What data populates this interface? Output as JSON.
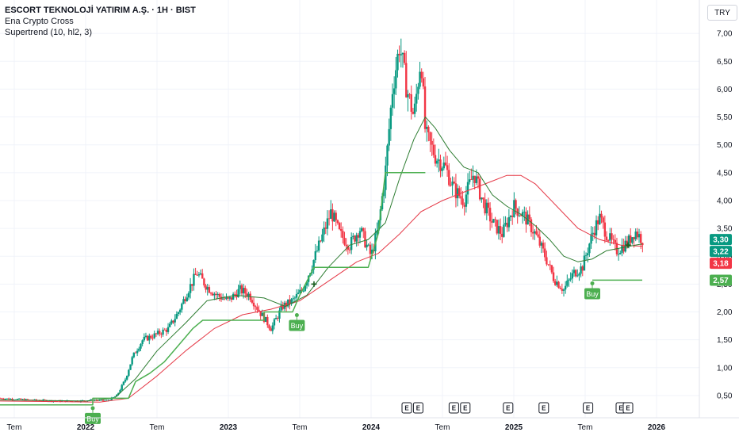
{
  "header": {
    "title": "ESCORT TEKNOLOJİ YATIRIM A.Ş. · 1H · BIST",
    "indicator_1": "Ena Crypto Cross",
    "indicator_2": "Supertrend (10, hl2, 3)",
    "currency": "TRY"
  },
  "chart_data": {
    "type": "candlestick",
    "y_ticks": [
      "0,50",
      "1,00",
      "1,50",
      "2,00",
      "2,50",
      "3,00",
      "3,50",
      "4,00",
      "4,50",
      "5,00",
      "5,50",
      "6,00",
      "6,50",
      "7,00"
    ],
    "y_tick_values": [
      0.5,
      1.0,
      1.5,
      2.0,
      2.5,
      3.0,
      3.5,
      4.0,
      4.5,
      5.0,
      5.5,
      6.0,
      6.5,
      7.0
    ],
    "ylim": [
      0.1,
      7.6
    ],
    "x_labels": [
      {
        "label": "Tem",
        "t": 2021.5,
        "bold": false
      },
      {
        "label": "2022",
        "t": 2022.0,
        "bold": true
      },
      {
        "label": "Tem",
        "t": 2022.5,
        "bold": false
      },
      {
        "label": "2023",
        "t": 2023.0,
        "bold": true
      },
      {
        "label": "Tem",
        "t": 2023.5,
        "bold": false
      },
      {
        "label": "2024",
        "t": 2024.0,
        "bold": true
      },
      {
        "label": "Tem",
        "t": 2024.5,
        "bold": false
      },
      {
        "label": "2025",
        "t": 2025.0,
        "bold": true
      },
      {
        "label": "Tem",
        "t": 2025.5,
        "bold": false
      },
      {
        "label": "2026",
        "t": 2026.0,
        "bold": true
      }
    ],
    "xlim": [
      2021.4,
      2026.3
    ],
    "price_path": [
      [
        2021.4,
        0.45
      ],
      [
        2021.6,
        0.42
      ],
      [
        2021.8,
        0.4
      ],
      [
        2021.95,
        0.4
      ],
      [
        2022.05,
        0.42
      ],
      [
        2022.15,
        0.4
      ],
      [
        2022.22,
        0.5
      ],
      [
        2022.28,
        0.8
      ],
      [
        2022.33,
        1.2
      ],
      [
        2022.4,
        1.5
      ],
      [
        2022.5,
        1.6
      ],
      [
        2022.58,
        1.7
      ],
      [
        2022.65,
        2.0
      ],
      [
        2022.72,
        2.4
      ],
      [
        2022.78,
        2.7
      ],
      [
        2022.85,
        2.45
      ],
      [
        2022.92,
        2.3
      ],
      [
        2023.0,
        2.2
      ],
      [
        2023.08,
        2.4
      ],
      [
        2023.15,
        2.3
      ],
      [
        2023.22,
        2.0
      ],
      [
        2023.3,
        1.7
      ],
      [
        2023.38,
        2.1
      ],
      [
        2023.45,
        2.2
      ],
      [
        2023.52,
        2.4
      ],
      [
        2023.58,
        2.8
      ],
      [
        2023.65,
        3.3
      ],
      [
        2023.72,
        3.8
      ],
      [
        2023.78,
        3.4
      ],
      [
        2023.85,
        3.2
      ],
      [
        2023.92,
        3.5
      ],
      [
        2024.0,
        3.0
      ],
      [
        2024.05,
        3.5
      ],
      [
        2024.1,
        4.5
      ],
      [
        2024.15,
        6.0
      ],
      [
        2024.2,
        6.8
      ],
      [
        2024.25,
        6.0
      ],
      [
        2024.3,
        5.5
      ],
      [
        2024.35,
        6.6
      ],
      [
        2024.38,
        5.2
      ],
      [
        2024.45,
        4.8
      ],
      [
        2024.52,
        4.6
      ],
      [
        2024.58,
        4.2
      ],
      [
        2024.65,
        4.0
      ],
      [
        2024.72,
        4.5
      ],
      [
        2024.78,
        4.0
      ],
      [
        2024.85,
        3.6
      ],
      [
        2024.92,
        3.4
      ],
      [
        2025.0,
        3.9
      ],
      [
        2025.08,
        3.7
      ],
      [
        2025.15,
        3.4
      ],
      [
        2025.22,
        3.0
      ],
      [
        2025.28,
        2.6
      ],
      [
        2025.35,
        2.4
      ],
      [
        2025.42,
        2.7
      ],
      [
        2025.48,
        2.8
      ],
      [
        2025.55,
        3.4
      ],
      [
        2025.6,
        3.7
      ],
      [
        2025.65,
        3.4
      ],
      [
        2025.72,
        3.1
      ],
      [
        2025.8,
        3.25
      ],
      [
        2025.85,
        3.45
      ],
      [
        2025.9,
        3.3
      ]
    ],
    "supertrend": [
      [
        2021.4,
        0.33
      ],
      [
        2022.05,
        0.33
      ],
      [
        2022.05,
        0.45
      ],
      [
        2022.3,
        0.45
      ],
      [
        2022.35,
        0.75
      ],
      [
        2022.45,
        0.9
      ],
      [
        2022.55,
        1.1
      ],
      [
        2022.65,
        1.4
      ],
      [
        2022.75,
        1.7
      ],
      [
        2022.82,
        1.85
      ],
      [
        2023.25,
        1.85
      ],
      [
        2023.25,
        2.0
      ],
      [
        2023.45,
        2.0
      ],
      [
        2023.5,
        2.3
      ],
      [
        2023.6,
        2.8
      ],
      [
        2023.98,
        2.8
      ],
      [
        2024.05,
        3.4
      ],
      [
        2024.1,
        4.5
      ],
      [
        2024.38,
        4.5
      ],
      [
        2024.38,
        4.5
      ]
    ],
    "supertrend_2": [
      [
        2025.55,
        2.57
      ],
      [
        2025.9,
        2.57
      ]
    ],
    "ema_fast": [
      [
        2021.4,
        0.42
      ],
      [
        2022.0,
        0.4
      ],
      [
        2022.2,
        0.45
      ],
      [
        2022.35,
        0.8
      ],
      [
        2022.5,
        1.3
      ],
      [
        2022.7,
        1.8
      ],
      [
        2022.85,
        2.2
      ],
      [
        2023.05,
        2.3
      ],
      [
        2023.25,
        2.25
      ],
      [
        2023.4,
        2.1
      ],
      [
        2023.55,
        2.3
      ],
      [
        2023.7,
        2.8
      ],
      [
        2023.85,
        3.2
      ],
      [
        2023.98,
        3.3
      ],
      [
        2024.1,
        3.6
      ],
      [
        2024.2,
        4.4
      ],
      [
        2024.3,
        5.1
      ],
      [
        2024.38,
        5.5
      ],
      [
        2024.45,
        5.3
      ],
      [
        2024.55,
        4.9
      ],
      [
        2024.65,
        4.6
      ],
      [
        2024.75,
        4.5
      ],
      [
        2024.85,
        4.1
      ],
      [
        2024.95,
        3.9
      ],
      [
        2025.05,
        3.75
      ],
      [
        2025.15,
        3.55
      ],
      [
        2025.25,
        3.3
      ],
      [
        2025.35,
        3.0
      ],
      [
        2025.45,
        2.9
      ],
      [
        2025.55,
        2.95
      ],
      [
        2025.65,
        3.1
      ],
      [
        2025.75,
        3.15
      ],
      [
        2025.85,
        3.2
      ],
      [
        2025.9,
        3.22
      ]
    ],
    "ema_slow": [
      [
        2021.4,
        0.4
      ],
      [
        2022.1,
        0.38
      ],
      [
        2022.3,
        0.45
      ],
      [
        2022.5,
        0.85
      ],
      [
        2022.7,
        1.3
      ],
      [
        2022.9,
        1.7
      ],
      [
        2023.1,
        1.95
      ],
      [
        2023.3,
        2.05
      ],
      [
        2023.5,
        2.2
      ],
      [
        2023.7,
        2.55
      ],
      [
        2023.9,
        2.9
      ],
      [
        2024.05,
        3.05
      ],
      [
        2024.2,
        3.4
      ],
      [
        2024.35,
        3.8
      ],
      [
        2024.5,
        4.0
      ],
      [
        2024.65,
        4.15
      ],
      [
        2024.85,
        4.35
      ],
      [
        2024.95,
        4.45
      ],
      [
        2025.05,
        4.45
      ],
      [
        2025.15,
        4.3
      ],
      [
        2025.3,
        3.9
      ],
      [
        2025.45,
        3.5
      ],
      [
        2025.6,
        3.3
      ],
      [
        2025.75,
        3.2
      ],
      [
        2025.9,
        3.18
      ]
    ],
    "price_tags": [
      {
        "label": "3,30",
        "value": 3.3,
        "color": "#089981"
      },
      {
        "label": "3,22",
        "value": 3.22,
        "color": "#089981"
      },
      {
        "label": "3,18",
        "value": 3.18,
        "color": "#f23645"
      },
      {
        "label": "2,57",
        "value": 2.57,
        "color": "#4caf50"
      }
    ],
    "buy_signals": [
      {
        "label": "Buy",
        "t": 2022.05,
        "y": 0.33
      },
      {
        "label": "Buy",
        "t": 2023.48,
        "y": 2.0
      },
      {
        "label": "Buy",
        "t": 2025.55,
        "y": 2.57
      }
    ],
    "cross_markers": [
      {
        "t": 2023.6,
        "y": 2.5
      },
      {
        "t": 2025.8,
        "y": 3.2
      }
    ],
    "events": [
      {
        "label": "E",
        "t": 2024.25
      },
      {
        "label": "E",
        "t": 2024.33
      },
      {
        "label": "E",
        "t": 2024.58
      },
      {
        "label": "E",
        "t": 2024.66
      },
      {
        "label": "E",
        "t": 2024.96
      },
      {
        "label": "E",
        "t": 2025.21
      },
      {
        "label": "E",
        "t": 2025.52
      },
      {
        "label": "E",
        "t": 2025.75
      },
      {
        "label": "E",
        "t": 2025.8
      }
    ],
    "colors": {
      "up": "#089981",
      "down": "#f23645",
      "supertrend": "#4caf50",
      "ema_fast": "#2e7d32",
      "ema_slow": "#e53947",
      "grid": "#f0f3fa"
    }
  }
}
